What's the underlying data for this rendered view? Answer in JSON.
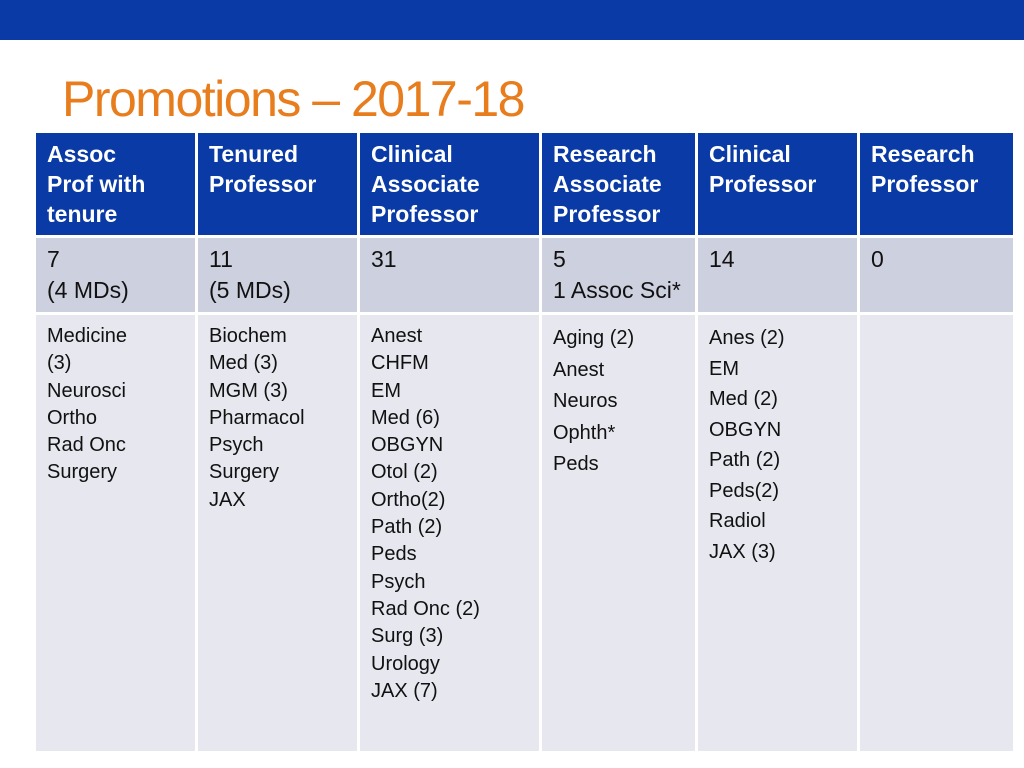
{
  "header_color": "#0a3aa6",
  "title_color": "#e87d1e",
  "title": "Promotions – 2017-18",
  "columns": [
    {
      "header": [
        "Assoc",
        "Prof with",
        "tenure"
      ],
      "count": [
        "7",
        "(4 MDs)"
      ],
      "depts": [
        "Medicine",
        "(3)",
        "Neurosci",
        "Ortho",
        "Rad Onc",
        "Surgery"
      ]
    },
    {
      "header": [
        "Tenured",
        "Professor"
      ],
      "count": [
        "11",
        "(5 MDs)"
      ],
      "depts": [
        "Biochem",
        "Med (3)",
        "MGM (3)",
        "Pharmacol",
        "Psych",
        "Surgery",
        "JAX"
      ]
    },
    {
      "header": [
        "Clinical",
        "Associate",
        "Professor"
      ],
      "count": [
        "31"
      ],
      "depts": [
        "Anest",
        "CHFM",
        "EM",
        "Med (6)",
        "OBGYN",
        "Otol (2)",
        "Ortho(2)",
        "Path (2)",
        "Peds",
        "Psych",
        "Rad Onc (2)",
        "Surg (3)",
        "Urology",
        "JAX (7)"
      ]
    },
    {
      "header": [
        "Research",
        "Associate",
        "Professor"
      ],
      "count": [
        "5",
        "1 Assoc Sci*"
      ],
      "depts": [
        "Aging (2)",
        "Anest",
        "Neuros",
        "Ophth*",
        "Peds"
      ]
    },
    {
      "header": [
        "Clinical",
        "Professor"
      ],
      "count": [
        "14"
      ],
      "depts": [
        "Anes (2)",
        "EM",
        "Med (2)",
        "OBGYN",
        "Path (2)",
        "Peds(2)",
        "Radiol",
        "JAX (3)"
      ]
    },
    {
      "header": [
        "Research",
        "Professor"
      ],
      "count": [
        "0"
      ],
      "depts": []
    }
  ]
}
